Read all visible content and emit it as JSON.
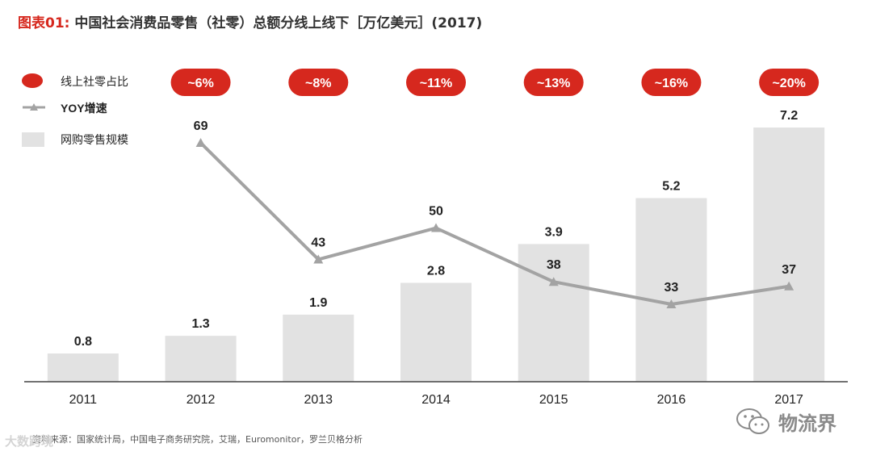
{
  "title_prefix": "图表01:",
  "title_text": "中国社会消费品零售（社零）总额分线上线下［万亿美元］(2017)",
  "source": "资料来源：国家统计局，中国电子商务研究院，艾瑞，Euromonitor，罗兰贝格分析",
  "watermark_left": "大数跨境",
  "watermark_right": "物流界",
  "colors": {
    "bar": "#e2e2e2",
    "line": "#a3a3a3",
    "badge": "#d6281e",
    "text": "#222222",
    "title_accent": "#d6281e"
  },
  "chart_data": {
    "type": "bar",
    "title": "中国社会消费品零售（社零）总额分线上线下［万亿美元］(2017)",
    "categories": [
      "2011",
      "2012",
      "2013",
      "2014",
      "2015",
      "2016",
      "2017"
    ],
    "series": [
      {
        "name": "网购零售规模",
        "type": "bar",
        "values": [
          0.8,
          1.3,
          1.9,
          2.8,
          3.9,
          5.2,
          7.2
        ],
        "labels": [
          "0.8",
          "1.3",
          "1.9",
          "2.8",
          "3.9",
          "5.2",
          "7.2"
        ]
      },
      {
        "name": "YOY增速",
        "type": "line",
        "values": [
          null,
          69,
          43,
          50,
          38,
          33,
          37
        ],
        "labels": [
          "",
          "69",
          "43",
          "50",
          "38",
          "33",
          "37"
        ]
      },
      {
        "name": "线上社零占比",
        "type": "badge",
        "values": [
          null,
          6,
          8,
          11,
          13,
          16,
          20
        ],
        "labels": [
          "",
          "~6%",
          "~8%",
          "~11%",
          "~13%",
          "~16%",
          "~20%"
        ]
      }
    ],
    "legend": [
      {
        "label": "线上社零占比",
        "kind": "badge"
      },
      {
        "label": "YOY增速",
        "kind": "line"
      },
      {
        "label": "网购零售规模",
        "kind": "bar"
      }
    ],
    "legend_position": "top-left",
    "bar_ylim": [
      0,
      7.2
    ],
    "line_ylim": [
      33,
      69
    ],
    "grid": false
  }
}
